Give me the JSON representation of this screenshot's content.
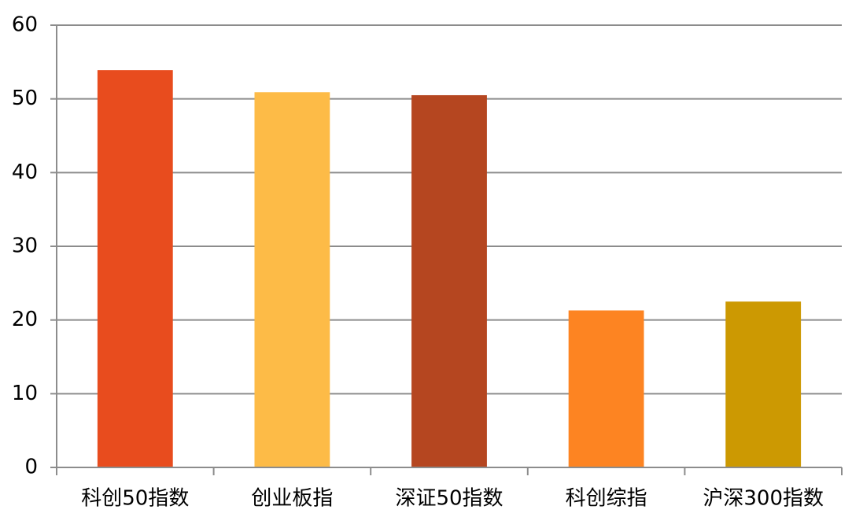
{
  "chart_data": {
    "type": "bar",
    "categories": [
      "科创50指数",
      "创业板指",
      "深证50指数",
      "科创综指",
      "沪深300指数"
    ],
    "values": [
      53.9,
      50.9,
      50.5,
      21.3,
      22.5
    ],
    "colors": [
      "#e84c1e",
      "#fdbb47",
      "#b54620",
      "#fd8422",
      "#cc9902"
    ],
    "ylim": [
      0,
      60
    ],
    "yticks": [
      0,
      10,
      20,
      30,
      40,
      50,
      60
    ],
    "grid": true
  }
}
